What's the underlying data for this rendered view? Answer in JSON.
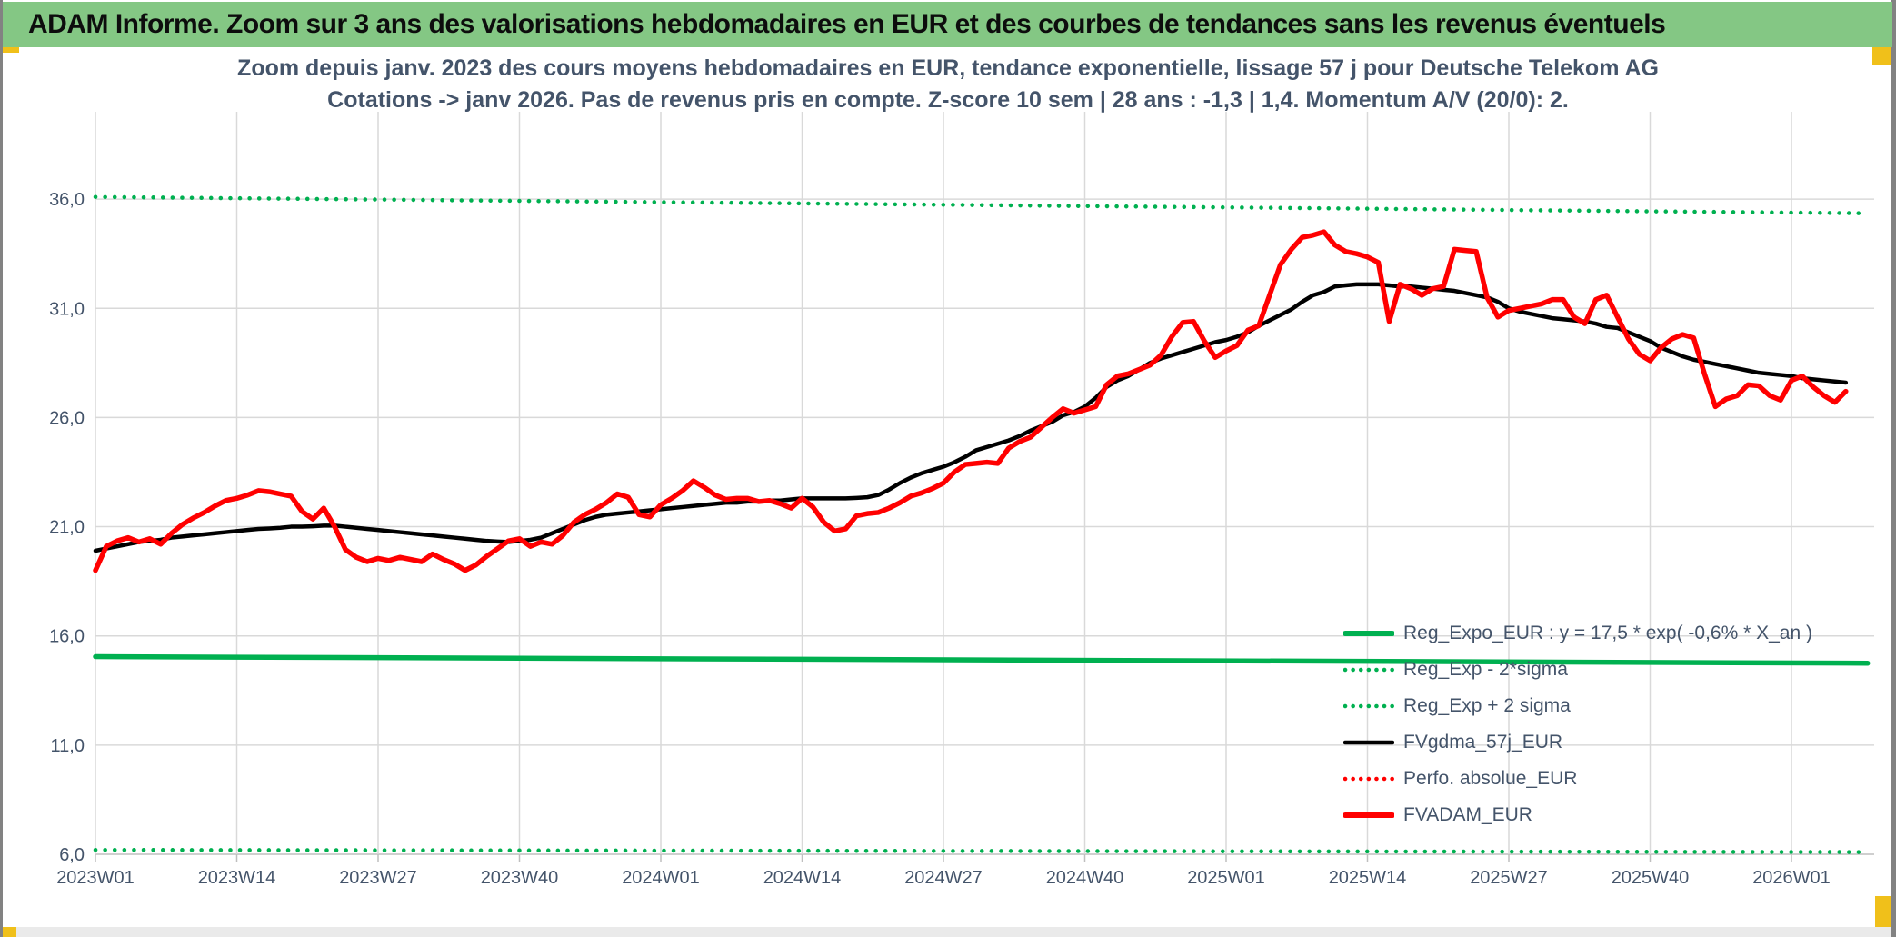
{
  "window": {
    "banner_text": "ADAM Informe. Zoom sur 3 ans des valorisations hebdomadaires en EUR et des courbes de tendances sans les revenus éventuels",
    "colors": {
      "banner_bg": "#84C784",
      "accent_gold": "#F0C01A",
      "frame_gray": "#828282",
      "bottom_strip_gray": "#EAEAEA"
    }
  },
  "chart": {
    "title_line1": "Zoom depuis janv. 2023 des cours moyens hebdomadaires en EUR, tendance exponentielle, lissage 57 j pour Deutsche Telekom AG",
    "title_line2": "Cotations -> janv 2026. Pas de revenus pris en compte. Z-score 10 sem | 28 ans : -1,3 | 1,4. Momentum A/V (20/0): 2.",
    "title_color": "#44546A",
    "axis_label_color": "#44546A",
    "grid_color": "#D9D9D9",
    "axis_line_color": "#BFBFBF"
  },
  "chart_data": {
    "type": "line",
    "title": "Zoom depuis janv. 2023 des cours moyens hebdomadaires en EUR, tendance exponentielle, lissage 57 j pour Deutsche Telekom AG Cotations -> janv 2026. Pas de revenus pris en compte. Z-score 10 sem | 28 ans : -1,3 | 1,4. Momentum A/V (20/0): 2.",
    "x_unit": "ISO week (weekly points, week 0 = 2023W01)",
    "x_tick_labels": [
      "2023W01",
      "2023W14",
      "2023W27",
      "2023W40",
      "2024W01",
      "2024W14",
      "2024W27",
      "2024W40",
      "2025W01",
      "2025W14",
      "2025W27",
      "2025W40",
      "2026W01"
    ],
    "x_tick_weeks": [
      0,
      13,
      26,
      39,
      52,
      65,
      78,
      91,
      104,
      117,
      130,
      143,
      156
    ],
    "ylim": [
      6,
      40
    ],
    "y_ticks": [
      6,
      11,
      16,
      21,
      26,
      31,
      36
    ],
    "y_tick_labels": [
      "6,0",
      "11,0",
      "16,0",
      "21,0",
      "26,0",
      "31,0",
      "36,0"
    ],
    "grid": true,
    "legend_position": "right-center",
    "legend": [
      {
        "label": "Reg_Expo_EUR : y = 17,5 * exp( -0,6% *  X_an )",
        "color": "#00B050",
        "swatch": "solid-thick"
      },
      {
        "label": "Reg_Exp - 2*sigma",
        "color": "#00B050",
        "swatch": "dotted"
      },
      {
        "label": "Reg_Exp + 2 sigma",
        "color": "#00B050",
        "swatch": "dotted"
      },
      {
        "label": "FVgdma_57j_EUR",
        "color": "#000000",
        "swatch": "solid"
      },
      {
        "label": "Perfo. absolue_EUR",
        "color": "#FF0000",
        "swatch": "dotted"
      },
      {
        "label": "FVADAM_EUR",
        "color": "#FF0000",
        "swatch": "solid-thick"
      }
    ],
    "series": [
      {
        "name": "Reg_Exp + 2 sigma",
        "color": "#00B050",
        "style": "dotted",
        "width": 4.5,
        "kind": "trend",
        "x_weeks": [
          0,
          163
        ],
        "values": [
          36.1,
          35.35
        ]
      },
      {
        "name": "Reg_Exp - 2*sigma",
        "color": "#00B050",
        "style": "dotted",
        "width": 4.5,
        "kind": "trend",
        "x_weeks": [
          0,
          163
        ],
        "values": [
          6.2,
          6.1
        ]
      },
      {
        "name": "Reg_Expo_EUR : y = 17,5 * exp( -0,6% *  X_an )",
        "color": "#00B050",
        "style": "solid",
        "width": 5.5,
        "kind": "trend",
        "x_weeks": [
          0,
          163
        ],
        "values": [
          15.05,
          14.75
        ]
      },
      {
        "name": "FVgdma_57j_EUR",
        "color": "#000000",
        "style": "solid",
        "width": 4.5,
        "kind": "weekly",
        "values": [
          19.9,
          20.0,
          20.1,
          20.2,
          20.3,
          20.35,
          20.4,
          20.5,
          20.55,
          20.6,
          20.65,
          20.7,
          20.75,
          20.8,
          20.85,
          20.9,
          20.92,
          20.95,
          21.0,
          21.0,
          21.02,
          21.05,
          21.05,
          21.0,
          20.95,
          20.9,
          20.85,
          20.8,
          20.75,
          20.7,
          20.65,
          20.6,
          20.55,
          20.5,
          20.45,
          20.4,
          20.35,
          20.32,
          20.3,
          20.35,
          20.4,
          20.5,
          20.7,
          20.9,
          21.1,
          21.3,
          21.45,
          21.55,
          21.6,
          21.65,
          21.7,
          21.75,
          21.8,
          21.85,
          21.9,
          21.95,
          22.0,
          22.05,
          22.1,
          22.1,
          22.15,
          22.15,
          22.2,
          22.2,
          22.25,
          22.3,
          22.3,
          22.3,
          22.3,
          22.3,
          22.32,
          22.35,
          22.45,
          22.7,
          23.0,
          23.25,
          23.45,
          23.6,
          23.75,
          23.95,
          24.2,
          24.5,
          24.65,
          24.8,
          24.95,
          25.15,
          25.4,
          25.6,
          25.8,
          26.1,
          26.25,
          26.5,
          26.9,
          27.4,
          27.7,
          27.9,
          28.2,
          28.5,
          28.7,
          28.85,
          29.0,
          29.15,
          29.3,
          29.45,
          29.55,
          29.7,
          29.9,
          30.2,
          30.45,
          30.7,
          30.95,
          31.3,
          31.6,
          31.75,
          32.0,
          32.05,
          32.1,
          32.1,
          32.1,
          32.05,
          32.0,
          32.0,
          31.95,
          31.9,
          31.85,
          31.8,
          31.7,
          31.6,
          31.5,
          31.3,
          31.0,
          30.85,
          30.75,
          30.65,
          30.55,
          30.5,
          30.45,
          30.4,
          30.3,
          30.15,
          30.1,
          29.9,
          29.7,
          29.5,
          29.2,
          29.0,
          28.8,
          28.65,
          28.55,
          28.45,
          28.35,
          28.25,
          28.15,
          28.05,
          28.0,
          27.95,
          27.9,
          27.8,
          27.75,
          27.7,
          27.65,
          27.6
        ]
      },
      {
        "name": "Perfo. absolue_EUR",
        "color": "#FF0000",
        "style": "dotted",
        "width": 3,
        "kind": "weekly",
        "values": []
      },
      {
        "name": "FVADAM_EUR",
        "color": "#FF0000",
        "style": "solid",
        "width": 5.5,
        "kind": "weekly",
        "values": [
          19.0,
          20.1,
          20.35,
          20.5,
          20.3,
          20.45,
          20.2,
          20.7,
          21.1,
          21.4,
          21.65,
          21.95,
          22.2,
          22.3,
          22.45,
          22.65,
          22.6,
          22.5,
          22.4,
          21.7,
          21.35,
          21.85,
          21.0,
          19.95,
          19.6,
          19.4,
          19.55,
          19.45,
          19.6,
          19.5,
          19.4,
          19.75,
          19.5,
          19.3,
          19.0,
          19.25,
          19.65,
          20.0,
          20.35,
          20.45,
          20.1,
          20.3,
          20.2,
          20.6,
          21.2,
          21.55,
          21.8,
          22.1,
          22.5,
          22.35,
          21.55,
          21.45,
          22.0,
          22.3,
          22.65,
          23.1,
          22.8,
          22.45,
          22.25,
          22.3,
          22.3,
          22.15,
          22.2,
          22.05,
          21.85,
          22.3,
          21.9,
          21.2,
          20.8,
          20.9,
          21.5,
          21.6,
          21.65,
          21.85,
          22.1,
          22.4,
          22.55,
          22.75,
          23.0,
          23.5,
          23.85,
          23.9,
          23.95,
          23.9,
          24.6,
          24.9,
          25.1,
          25.55,
          26.0,
          26.4,
          26.2,
          26.35,
          26.5,
          27.5,
          27.9,
          28.0,
          28.2,
          28.4,
          28.85,
          29.7,
          30.35,
          30.4,
          29.5,
          28.75,
          29.05,
          29.3,
          30.0,
          30.2,
          31.6,
          33.0,
          33.7,
          34.25,
          34.35,
          34.5,
          33.9,
          33.6,
          33.5,
          33.35,
          33.1,
          30.4,
          32.1,
          31.9,
          31.6,
          31.9,
          32.0,
          33.7,
          33.65,
          33.6,
          31.5,
          30.6,
          30.9,
          31.0,
          31.1,
          31.2,
          31.4,
          31.4,
          30.6,
          30.3,
          31.4,
          31.6,
          30.6,
          29.6,
          28.9,
          28.6,
          29.2,
          29.6,
          29.8,
          29.65,
          28.0,
          26.5,
          26.85,
          27.0,
          27.5,
          27.45,
          27.0,
          26.8,
          27.7,
          27.9,
          27.4,
          27.0,
          26.7,
          27.2
        ]
      }
    ]
  }
}
